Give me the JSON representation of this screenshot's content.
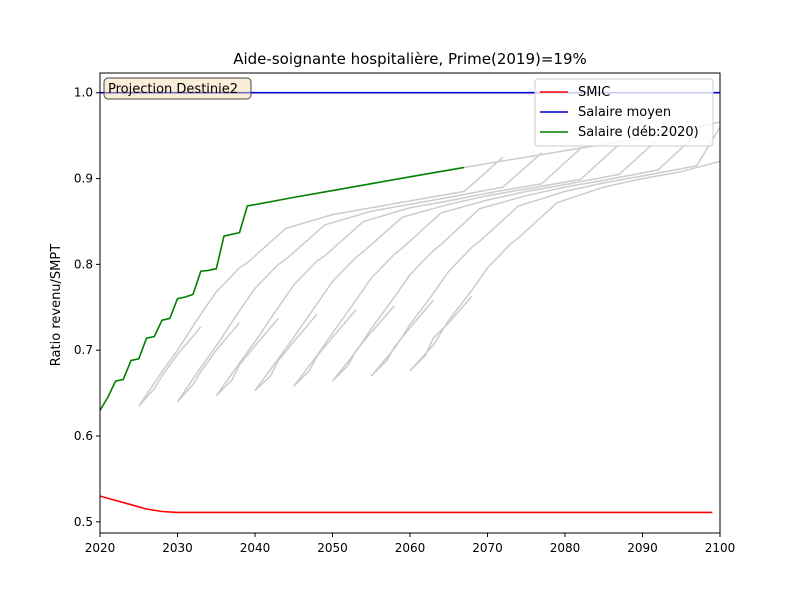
{
  "chart_data": {
    "type": "line",
    "title": "Aide-soignante hospitalière, Prime(2019)=19%",
    "xlabel": "",
    "ylabel": "Ratio revenu/SMPT",
    "xlim": [
      2020,
      2100
    ],
    "ylim": [
      0.487,
      1.023
    ],
    "xticks": [
      2020,
      2030,
      2040,
      2050,
      2060,
      2070,
      2080,
      2090,
      2100
    ],
    "yticks": [
      0.5,
      0.6,
      0.7,
      0.8,
      0.9,
      1.0
    ],
    "grid": false,
    "legend_position": "top-right",
    "annotation": "Projection Destinie2",
    "colors": {
      "smic": "#ff0000",
      "moyen": "#0000cc",
      "deb2020": "#008000",
      "other_cohorts": "#cccccc"
    },
    "series": [
      {
        "name": "SMIC",
        "x": [
          2020,
          2022,
          2024,
          2026,
          2028,
          2030,
          2035,
          2050,
          2070,
          2099
        ],
        "y": [
          0.53,
          0.525,
          0.52,
          0.515,
          0.512,
          0.511,
          0.511,
          0.511,
          0.511,
          0.511
        ]
      },
      {
        "name": "Salaire moyen",
        "x": [
          2020,
          2100
        ],
        "y": [
          1.0,
          1.0
        ]
      },
      {
        "name": "Salaire (déb:2020)",
        "x": [
          2020,
          2021,
          2022,
          2023,
          2024,
          2025,
          2026,
          2027,
          2028,
          2029,
          2030,
          2031,
          2032,
          2033,
          2034,
          2035,
          2036,
          2037,
          2038,
          2039,
          2045,
          2050,
          2055,
          2060,
          2067
        ],
        "y": [
          0.63,
          0.645,
          0.664,
          0.666,
          0.688,
          0.69,
          0.714,
          0.716,
          0.735,
          0.737,
          0.76,
          0.762,
          0.765,
          0.792,
          0.793,
          0.795,
          0.833,
          0.835,
          0.837,
          0.868,
          0.878,
          0.886,
          0.894,
          0.902,
          0.913
        ]
      }
    ],
    "other_cohorts": [
      {
        "x": [
          2025,
          2027,
          2028,
          2030,
          2033
        ],
        "y": [
          0.635,
          0.655,
          0.67,
          0.695,
          0.727
        ]
      },
      {
        "x": [
          2030,
          2032,
          2033,
          2035,
          2038
        ],
        "y": [
          0.64,
          0.66,
          0.675,
          0.7,
          0.732
        ]
      },
      {
        "x": [
          2035,
          2037,
          2038,
          2040,
          2043
        ],
        "y": [
          0.647,
          0.665,
          0.683,
          0.705,
          0.737
        ]
      },
      {
        "x": [
          2040,
          2042,
          2043,
          2045,
          2048
        ],
        "y": [
          0.653,
          0.67,
          0.688,
          0.71,
          0.742
        ]
      },
      {
        "x": [
          2045,
          2047,
          2048,
          2050,
          2053
        ],
        "y": [
          0.658,
          0.676,
          0.693,
          0.715,
          0.747
        ]
      },
      {
        "x": [
          2050,
          2052,
          2053,
          2055,
          2058
        ],
        "y": [
          0.664,
          0.682,
          0.699,
          0.721,
          0.752
        ]
      },
      {
        "x": [
          2055,
          2057,
          2058,
          2060,
          2063
        ],
        "y": [
          0.67,
          0.688,
          0.704,
          0.726,
          0.758
        ]
      },
      {
        "x": [
          2060,
          2062,
          2063,
          2065,
          2068
        ],
        "y": [
          0.676,
          0.694,
          0.714,
          0.732,
          0.763
        ]
      },
      {
        "x": [
          2025,
          2028,
          2030,
          2033,
          2035,
          2038,
          2039,
          2044,
          2050,
          2055,
          2060,
          2067,
          2072
        ],
        "y": [
          0.635,
          0.675,
          0.7,
          0.742,
          0.768,
          0.796,
          0.802,
          0.842,
          0.858,
          0.866,
          0.874,
          0.885,
          0.925
        ]
      },
      {
        "x": [
          2030,
          2033,
          2035,
          2038,
          2040,
          2043,
          2044,
          2049,
          2055,
          2060,
          2065,
          2072,
          2077
        ],
        "y": [
          0.64,
          0.68,
          0.705,
          0.746,
          0.772,
          0.8,
          0.806,
          0.846,
          0.862,
          0.87,
          0.878,
          0.89,
          0.93
        ]
      },
      {
        "x": [
          2035,
          2038,
          2040,
          2043,
          2045,
          2048,
          2049,
          2054,
          2060,
          2065,
          2070,
          2077,
          2082
        ],
        "y": [
          0.647,
          0.685,
          0.71,
          0.75,
          0.776,
          0.804,
          0.81,
          0.85,
          0.866,
          0.874,
          0.883,
          0.894,
          0.935
        ]
      },
      {
        "x": [
          2040,
          2043,
          2045,
          2048,
          2050,
          2053,
          2054,
          2059,
          2065,
          2070,
          2075,
          2082,
          2087
        ],
        "y": [
          0.653,
          0.69,
          0.715,
          0.754,
          0.78,
          0.808,
          0.815,
          0.855,
          0.87,
          0.88,
          0.888,
          0.899,
          0.94
        ]
      },
      {
        "x": [
          2045,
          2048,
          2050,
          2053,
          2055,
          2058,
          2059,
          2064,
          2070,
          2075,
          2080,
          2087,
          2092
        ],
        "y": [
          0.658,
          0.694,
          0.72,
          0.758,
          0.784,
          0.812,
          0.819,
          0.86,
          0.875,
          0.885,
          0.893,
          0.905,
          0.946
        ]
      },
      {
        "x": [
          2050,
          2053,
          2055,
          2058,
          2060,
          2063,
          2064,
          2069,
          2075,
          2080,
          2085,
          2092,
          2097
        ],
        "y": [
          0.664,
          0.698,
          0.725,
          0.762,
          0.788,
          0.816,
          0.823,
          0.865,
          0.88,
          0.89,
          0.898,
          0.91,
          0.952
        ]
      },
      {
        "x": [
          2055,
          2058,
          2060,
          2063,
          2065,
          2068,
          2069,
          2074,
          2080,
          2085,
          2090,
          2097,
          2100
        ],
        "y": [
          0.67,
          0.702,
          0.73,
          0.766,
          0.792,
          0.82,
          0.827,
          0.868,
          0.885,
          0.895,
          0.903,
          0.915,
          0.96
        ]
      },
      {
        "x": [
          2060,
          2063,
          2065,
          2068,
          2070,
          2073,
          2074,
          2079,
          2085,
          2090,
          2095,
          2100
        ],
        "y": [
          0.676,
          0.706,
          0.735,
          0.77,
          0.796,
          0.824,
          0.831,
          0.872,
          0.89,
          0.9,
          0.908,
          0.92
        ]
      },
      {
        "x": [
          2067,
          2075,
          2085,
          2095,
          2100
        ],
        "y": [
          0.913,
          0.925,
          0.94,
          0.955,
          0.966
        ]
      }
    ]
  }
}
